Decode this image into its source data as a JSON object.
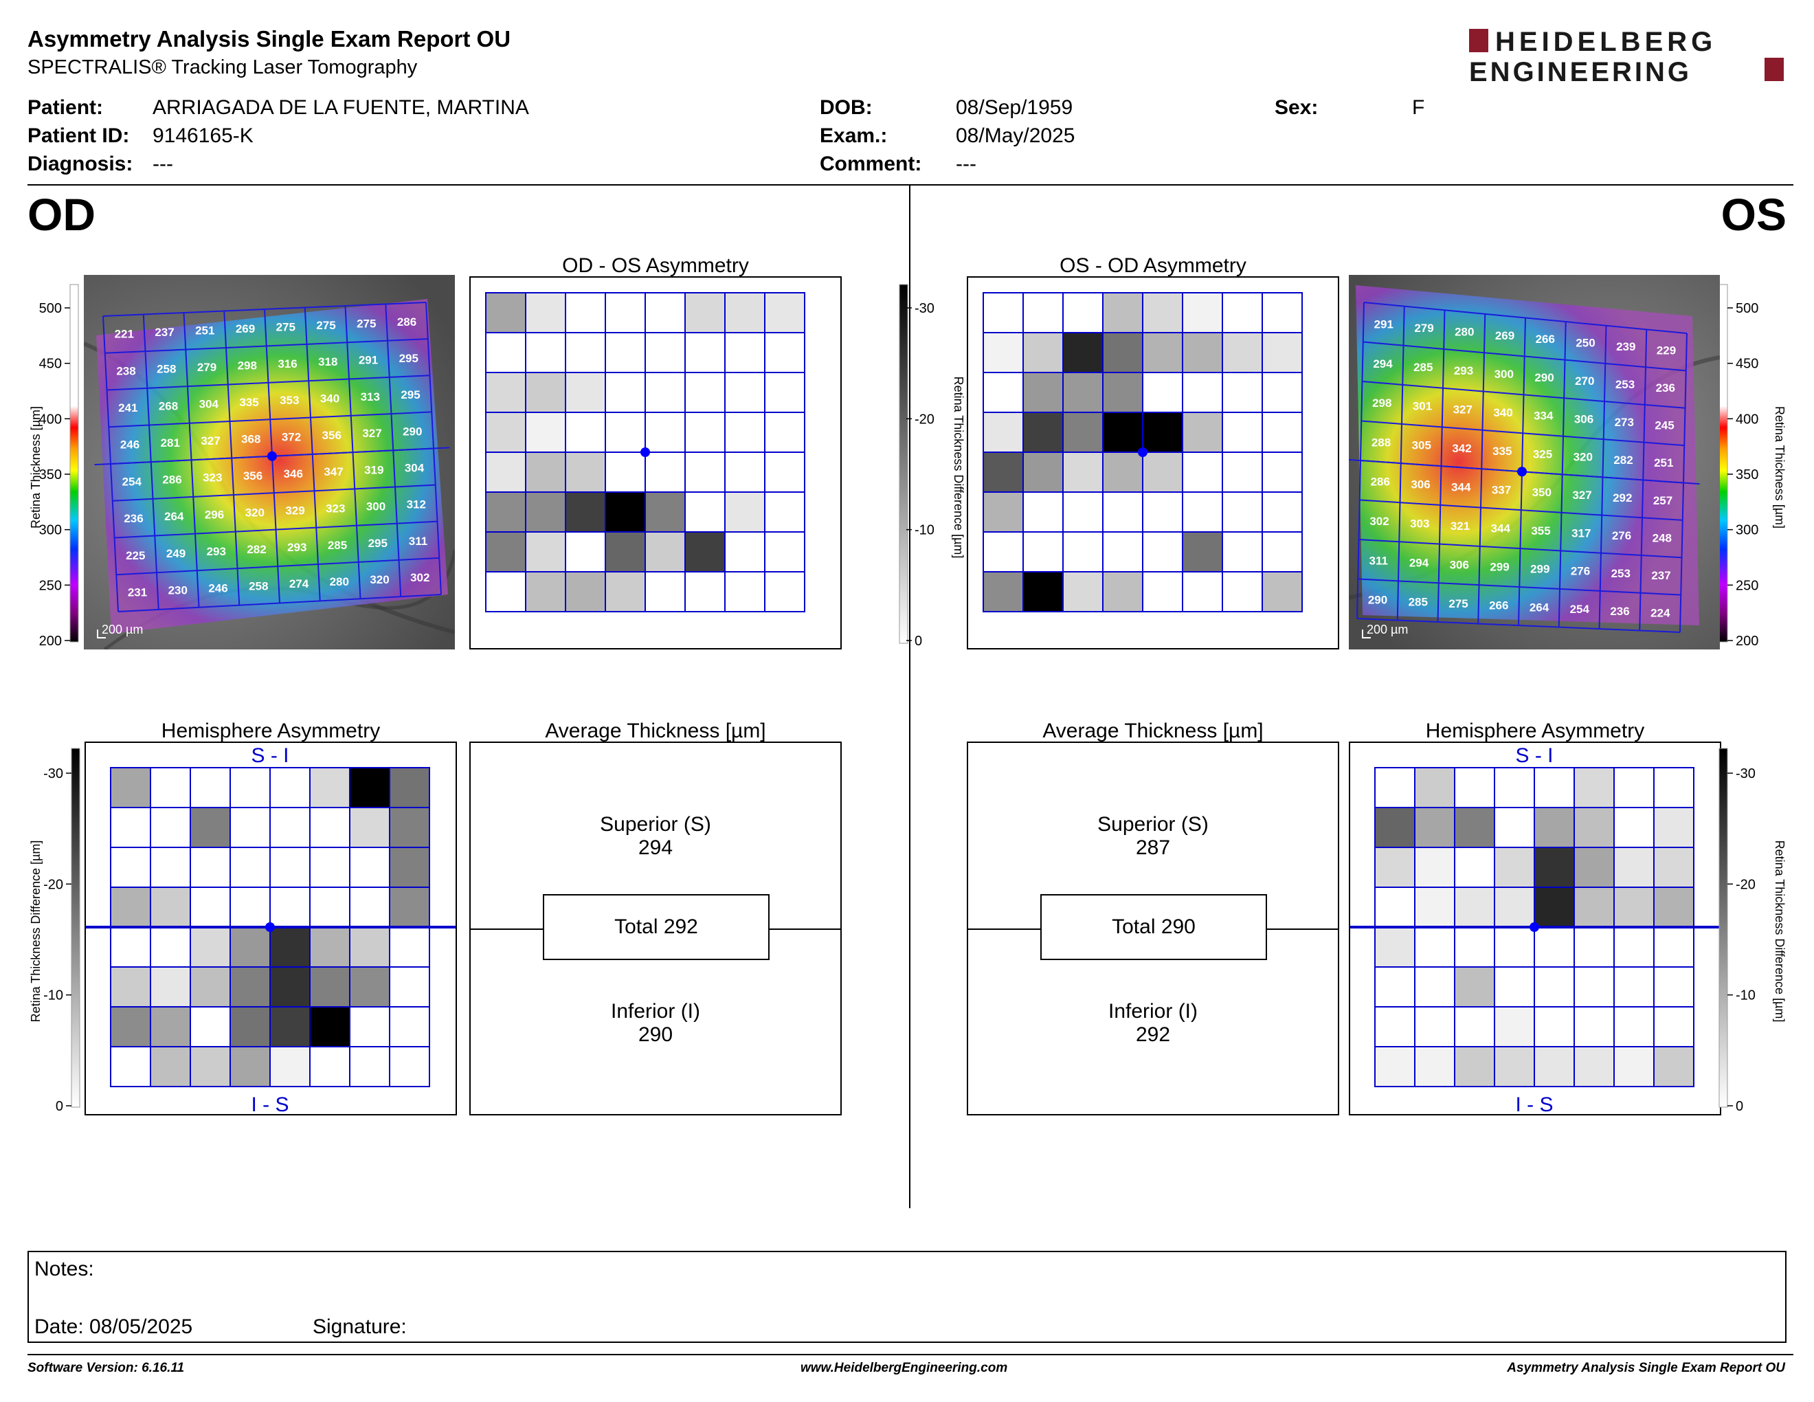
{
  "header": {
    "title": "Asymmetry Analysis Single Exam Report OU",
    "subtitle": "SPECTRALIS® Tracking Laser Tomography",
    "logo_line1": "HEIDELBERG",
    "logo_line2": "ENGINEERING",
    "logo_color": "#8b1a2b"
  },
  "patient": {
    "patient_label": "Patient:",
    "patient_value": "ARRIAGADA DE LA FUENTE, MARTINA",
    "id_label": "Patient ID:",
    "id_value": "9146165-K",
    "diagnosis_label": "Diagnosis:",
    "diagnosis_value": "---",
    "dob_label": "DOB:",
    "dob_value": "08/Sep/1959",
    "exam_label": "Exam.:",
    "exam_value": "08/May/2025",
    "comment_label": "Comment:",
    "comment_value": "---",
    "sex_label": "Sex:",
    "sex_value": "F"
  },
  "eyes": {
    "od": "OD",
    "os": "OS"
  },
  "panels": {
    "od_asym_title": "OD - OS Asymmetry",
    "os_asym_title": "OS - OD Asymmetry",
    "hemi_title": "Hemisphere Asymmetry",
    "avg_title": "Average Thickness [µm]",
    "hemi_top": "S - I",
    "hemi_bottom": "I - S",
    "scale_label": "200 µm"
  },
  "scales": {
    "thickness_label": "Retina  Thickness [µm]",
    "thickness_ticks": [
      "500",
      "450",
      "400",
      "350",
      "300",
      "250",
      "200"
    ],
    "diff_label": "Retina Thickness Difference [µm]",
    "diff_ticks": [
      "-30",
      "-20",
      "-10",
      "0"
    ]
  },
  "od_thickness": [
    [
      "221",
      "237",
      "251",
      "269",
      "275",
      "275",
      "275",
      "286"
    ],
    [
      "238",
      "258",
      "279",
      "298",
      "316",
      "318",
      "291",
      "295"
    ],
    [
      "241",
      "268",
      "304",
      "335",
      "353",
      "340",
      "313",
      "295"
    ],
    [
      "246",
      "281",
      "327",
      "368",
      "372",
      "356",
      "327",
      "290"
    ],
    [
      "254",
      "286",
      "323",
      "356",
      "346",
      "347",
      "319",
      "304"
    ],
    [
      "236",
      "264",
      "296",
      "320",
      "329",
      "323",
      "300",
      "312"
    ],
    [
      "225",
      "249",
      "293",
      "282",
      "293",
      "285",
      "295",
      "311"
    ],
    [
      "231",
      "230",
      "246",
      "258",
      "274",
      "280",
      "320",
      "302"
    ]
  ],
  "os_thickness": [
    [
      "291",
      "279",
      "280",
      "269",
      "266",
      "250",
      "239",
      "229"
    ],
    [
      "294",
      "285",
      "293",
      "300",
      "290",
      "270",
      "253",
      "236"
    ],
    [
      "298",
      "301",
      "327",
      "340",
      "334",
      "306",
      "273",
      "245"
    ],
    [
      "288",
      "305",
      "342",
      "335",
      "325",
      "320",
      "282",
      "251"
    ],
    [
      "286",
      "306",
      "344",
      "337",
      "350",
      "327",
      "292",
      "257"
    ],
    [
      "302",
      "303",
      "321",
      "344",
      "355",
      "317",
      "276",
      "248"
    ],
    [
      "311",
      "294",
      "306",
      "299",
      "299",
      "276",
      "253",
      "237"
    ],
    [
      "290",
      "285",
      "275",
      "266",
      "264",
      "254",
      "236",
      "224"
    ]
  ],
  "od_asym_grid": [
    [
      0.35,
      0.1,
      0,
      0,
      0,
      0.15,
      0.12,
      0.1
    ],
    [
      0,
      0,
      0,
      0,
      0,
      0,
      0,
      0
    ],
    [
      0.15,
      0.2,
      0.1,
      0,
      0,
      0,
      0,
      0
    ],
    [
      0.15,
      0.05,
      0,
      0,
      0,
      0,
      0,
      0
    ],
    [
      0.1,
      0.25,
      0.2,
      0,
      0,
      0,
      0,
      0
    ],
    [
      0.45,
      0.45,
      0.75,
      1.0,
      0.5,
      0,
      0.1,
      0
    ],
    [
      0.5,
      0.15,
      0,
      0.6,
      0.2,
      0.75,
      0,
      0
    ],
    [
      0,
      0.25,
      0.3,
      0.2,
      0,
      0,
      0,
      0
    ]
  ],
  "os_asym_grid": [
    [
      0,
      0,
      0,
      0.25,
      0.15,
      0.05,
      0,
      0
    ],
    [
      0.05,
      0.2,
      0.85,
      0.55,
      0.3,
      0.3,
      0.15,
      0.1
    ],
    [
      0,
      0.4,
      0.4,
      0.45,
      0,
      0,
      0,
      0
    ],
    [
      0.1,
      0.75,
      0.5,
      1.0,
      1.0,
      0.25,
      0,
      0
    ],
    [
      0.65,
      0.4,
      0.15,
      0.3,
      0.2,
      0,
      0,
      0
    ],
    [
      0.3,
      0,
      0,
      0,
      0,
      0,
      0,
      0
    ],
    [
      0,
      0,
      0,
      0,
      0,
      0.55,
      0,
      0
    ],
    [
      0.45,
      1.0,
      0.15,
      0.25,
      0,
      0,
      0,
      0.25
    ]
  ],
  "od_hemi_grid": [
    [
      0.35,
      0,
      0,
      0,
      0,
      0.15,
      1.0,
      0.55
    ],
    [
      0,
      0,
      0.5,
      0,
      0,
      0,
      0.15,
      0.5
    ],
    [
      0,
      0,
      0,
      0,
      0,
      0,
      0,
      0.5
    ],
    [
      0.3,
      0.2,
      0,
      0,
      0,
      0,
      0,
      0.45
    ],
    [
      0,
      0,
      0.15,
      0.4,
      0.8,
      0.3,
      0.2,
      0
    ],
    [
      0.2,
      0.1,
      0.25,
      0.5,
      0.8,
      0.5,
      0.45,
      0
    ],
    [
      0.45,
      0.35,
      0,
      0.55,
      0.75,
      1.0,
      0,
      0
    ],
    [
      0,
      0.25,
      0.2,
      0.35,
      0.05,
      0,
      0,
      0
    ]
  ],
  "os_hemi_grid": [
    [
      0,
      0.2,
      0,
      0,
      0,
      0.15,
      0,
      0
    ],
    [
      0.6,
      0.35,
      0.5,
      0,
      0.35,
      0.25,
      0,
      0.1
    ],
    [
      0.15,
      0.05,
      0,
      0.15,
      0.8,
      0.35,
      0.1,
      0.15
    ],
    [
      0,
      0.05,
      0.1,
      0.1,
      0.85,
      0.25,
      0.2,
      0.3
    ],
    [
      0.1,
      0,
      0,
      0,
      0,
      0,
      0,
      0
    ],
    [
      0,
      0,
      0.25,
      0,
      0,
      0,
      0,
      0
    ],
    [
      0,
      0,
      0,
      0.05,
      0,
      0,
      0,
      0
    ],
    [
      0.05,
      0.05,
      0.2,
      0.15,
      0.1,
      0.1,
      0.05,
      0.2
    ]
  ],
  "avg_od": {
    "superior_label": "Superior (S)",
    "superior_value": "294",
    "total": "Total 292",
    "inferior_label": "Inferior (I)",
    "inferior_value": "290"
  },
  "avg_os": {
    "superior_label": "Superior (S)",
    "superior_value": "287",
    "total": "Total 290",
    "inferior_label": "Inferior (I)",
    "inferior_value": "292"
  },
  "notes": {
    "notes_label": "Notes:",
    "date_label": "Date: 08/05/2025",
    "signature_label": "Signature:"
  },
  "footer": {
    "version": "Software Version: 6.16.11",
    "website": "www.HeidelbergEngineering.com",
    "report": "Asymmetry Analysis Single Exam Report OU"
  },
  "colors": {
    "grid_blue": "#0000cc",
    "fovea_dot": "#0000ff"
  }
}
